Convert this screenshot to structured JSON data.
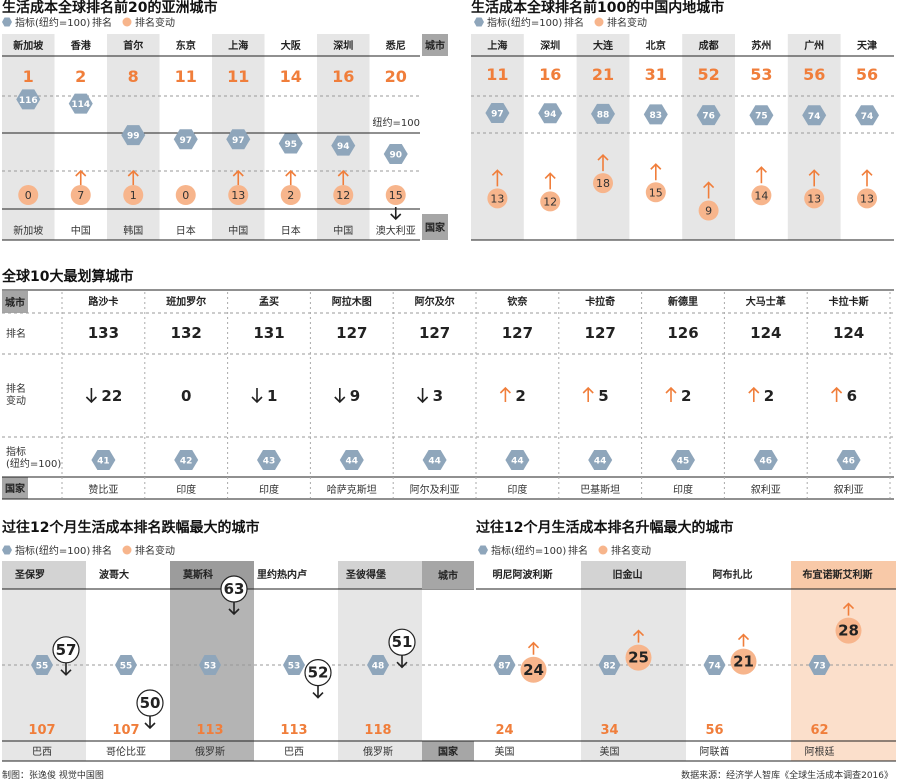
{
  "colors": {
    "accent": "#f07e3b",
    "hex": "#8fa6bb",
    "circle": "#f7b58c",
    "shade": "#e6e6e6",
    "label_box": "#a6a6a6",
    "dark_shade": "#b4b4b4",
    "light_orange": "#fbdfcb"
  },
  "legend": {
    "index": "指标(纽约=100)",
    "rank": "排名",
    "change": "排名变动"
  },
  "footer": {
    "credit": "制图：张逸俊 视觉中国图",
    "source": "数据来源：经济学人智库《全球生活成本调查2016》"
  },
  "chart_data": [
    {
      "id": "asia_top20",
      "type": "table",
      "title": "生活成本全球排名前20的亚洲城市",
      "row_labels": {
        "city": "城市",
        "country": "国家"
      },
      "baseline_label": "纽约=100",
      "cities": [
        "新加坡",
        "香港",
        "首尔",
        "东京",
        "上海",
        "大阪",
        "深圳",
        "悉尼"
      ],
      "ranks": [
        1,
        2,
        8,
        11,
        11,
        14,
        16,
        20
      ],
      "index": [
        116,
        114,
        99,
        97,
        97,
        95,
        94,
        90
      ],
      "change": [
        0,
        7,
        1,
        0,
        13,
        2,
        12,
        15
      ],
      "change_dir": [
        "none",
        "up",
        "up",
        "none",
        "up",
        "up",
        "up",
        "down"
      ],
      "countries": [
        "新加坡",
        "中国",
        "韩国",
        "日本",
        "中国",
        "日本",
        "中国",
        "澳大利亚"
      ]
    },
    {
      "id": "china_top100",
      "type": "table",
      "title": "生活成本全球排名前100的中国内地城市",
      "cities": [
        "上海",
        "深圳",
        "大连",
        "北京",
        "成都",
        "苏州",
        "广州",
        "天津"
      ],
      "ranks": [
        11,
        16,
        21,
        31,
        52,
        53,
        56,
        56
      ],
      "index": [
        97,
        94,
        88,
        83,
        76,
        75,
        74,
        74
      ],
      "change": [
        13,
        12,
        18,
        15,
        9,
        14,
        13,
        13
      ],
      "change_dir": [
        "up",
        "up",
        "up",
        "up",
        "up",
        "up",
        "up",
        "up"
      ]
    },
    {
      "id": "cheapest10",
      "type": "table",
      "title": "全球10大最划算城市",
      "row_labels": {
        "city": "城市",
        "rank": "排名",
        "change_1": "排名",
        "change_2": "变动",
        "index_1": "指标",
        "index_2": "(纽约=100)",
        "country": "国家"
      },
      "cities": [
        "路沙卡",
        "班加罗尔",
        "孟买",
        "阿拉木图",
        "阿尔及尔",
        "钦奈",
        "卡拉奇",
        "新德里",
        "大马士革",
        "卡拉卡斯"
      ],
      "ranks": [
        133,
        132,
        131,
        127,
        127,
        127,
        127,
        126,
        124,
        124
      ],
      "change": [
        22,
        0,
        1,
        9,
        3,
        2,
        5,
        2,
        2,
        6
      ],
      "change_dir": [
        "down",
        "none",
        "down",
        "down",
        "down",
        "up",
        "up",
        "up",
        "up",
        "up"
      ],
      "index": [
        41,
        42,
        43,
        44,
        44,
        44,
        44,
        45,
        46,
        46
      ],
      "countries": [
        "赞比亚",
        "印度",
        "印度",
        "哈萨克斯坦",
        "阿尔及利亚",
        "印度",
        "巴基斯坦",
        "印度",
        "叙利亚",
        "叙利亚"
      ]
    },
    {
      "id": "biggest_fall",
      "type": "table",
      "title": "过往12个月生活成本排名跌幅最大的城市",
      "cities": [
        "圣保罗",
        "波哥大",
        "莫斯科",
        "里约热内卢",
        "圣彼得堡"
      ],
      "index": [
        55,
        55,
        53,
        53,
        48
      ],
      "change": [
        57,
        50,
        63,
        52,
        51
      ],
      "ranks": [
        107,
        107,
        113,
        113,
        118
      ],
      "countries": [
        "巴西",
        "哥伦比亚",
        "俄罗斯",
        "巴西",
        "俄罗斯"
      ]
    },
    {
      "id": "biggest_rise",
      "type": "table",
      "title": "过往12个月生活成本排名升幅最大的城市",
      "row_labels": {
        "city": "城市",
        "country": "国家"
      },
      "cities": [
        "明尼阿波利斯",
        "旧金山",
        "阿布扎比",
        "布宜诺斯艾利斯"
      ],
      "index": [
        87,
        82,
        74,
        73
      ],
      "change": [
        24,
        25,
        21,
        28
      ],
      "ranks": [
        24,
        34,
        56,
        62
      ],
      "countries": [
        "美国",
        "美国",
        "阿联酋",
        "阿根廷"
      ]
    }
  ]
}
